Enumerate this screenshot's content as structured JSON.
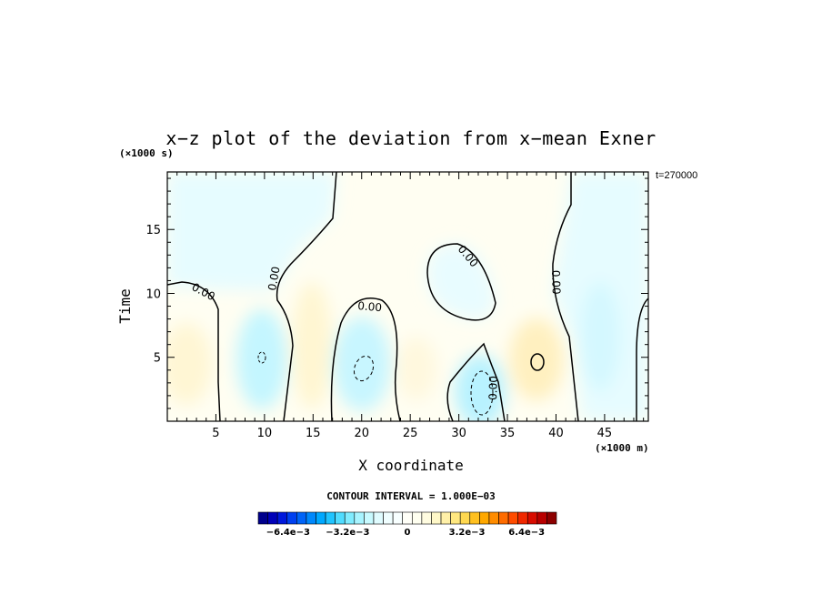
{
  "chart_data": {
    "type": "heatmap",
    "title": "x−z plot of the deviation from x−mean Exner",
    "xlabel": "X coordinate",
    "ylabel": "Time",
    "x_unit_label": "(×1000 m)",
    "y_unit_label": "(×1000 s)",
    "time_label": "t=270000",
    "contour_interval_label": "CONTOUR INTERVAL = 1.000E−03",
    "xlim": [
      0,
      49.5
    ],
    "ylim": [
      0,
      19.5
    ],
    "x_ticks": [
      5,
      10,
      15,
      20,
      25,
      30,
      35,
      40,
      45
    ],
    "y_ticks": [
      5,
      10,
      15
    ],
    "contour_labels": [
      "0.00",
      "0.00",
      "0.00",
      "0.00",
      "0.00",
      "0.00"
    ],
    "colorbar": {
      "min": -0.008,
      "max": 0.008,
      "tick_labels": [
        "−6.4e−3",
        "−3.2e−3",
        "0",
        "3.2e−3",
        "6.4e−3"
      ],
      "tick_values": [
        -0.0064,
        -0.0032,
        0,
        0.0032,
        0.0064
      ],
      "colors": [
        "#00008c",
        "#0000b8",
        "#0018dc",
        "#0040f0",
        "#0064f8",
        "#0088fc",
        "#00a8ff",
        "#20c4ff",
        "#50dcff",
        "#80ecff",
        "#a8f4ff",
        "#c8faff",
        "#e0fcff",
        "#f0feff",
        "#f8ffff",
        "#fffff8",
        "#fffff0",
        "#fffce0",
        "#fff8c8",
        "#fff0a8",
        "#ffe880",
        "#ffd850",
        "#ffc020",
        "#ffa800",
        "#ff8c00",
        "#ff6c00",
        "#ff4c00",
        "#f02800",
        "#d80c00",
        "#b80000",
        "#8c0000"
      ]
    }
  }
}
